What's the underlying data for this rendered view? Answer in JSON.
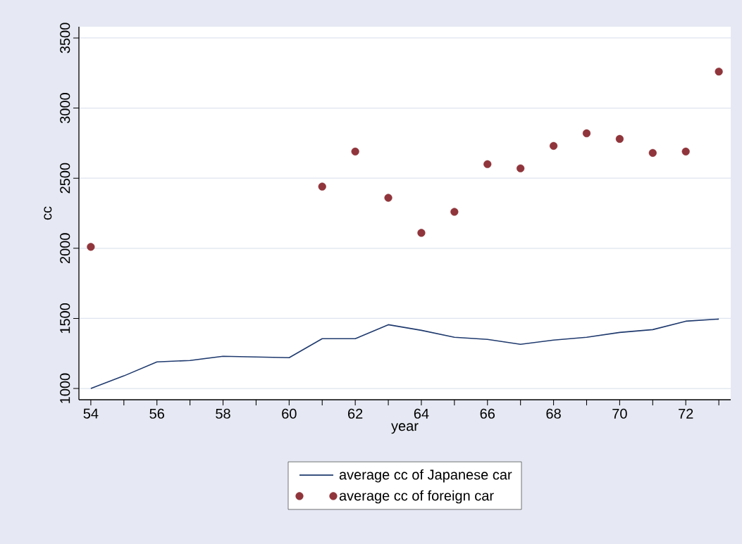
{
  "chart_data": {
    "type": "line",
    "xlabel": "year",
    "ylabel": "cc",
    "x": [
      54,
      55,
      56,
      57,
      58,
      59,
      60,
      61,
      62,
      63,
      64,
      65,
      66,
      67,
      68,
      69,
      70,
      71,
      72,
      73
    ],
    "series": [
      {
        "name": "average cc of Japanese car",
        "type": "line",
        "marker": "none",
        "color": "#1f3a6e",
        "values": [
          1000,
          1090,
          1190,
          1200,
          1230,
          1225,
          1220,
          1355,
          1355,
          1455,
          1415,
          1365,
          1350,
          1315,
          1345,
          1365,
          1400,
          1420,
          1480,
          1495
        ]
      },
      {
        "name": "average cc of foreign car",
        "type": "scatter",
        "marker": "circle",
        "color": "#90353b",
        "values": [
          2010,
          null,
          null,
          null,
          null,
          null,
          null,
          2440,
          2690,
          2360,
          2110,
          2260,
          2600,
          2570,
          2730,
          2820,
          2780,
          2680,
          2690,
          3260
        ]
      }
    ],
    "xlim": [
      53.64,
      73.36
    ],
    "ylim": [
      920,
      3580
    ],
    "xticks": [
      54,
      {
        "value": 55,
        "label": null
      },
      56,
      {
        "value": 57,
        "label": null
      },
      58,
      {
        "value": 59,
        "label": null
      },
      60,
      {
        "value": 61,
        "label": null
      },
      62,
      {
        "value": 63,
        "label": null
      },
      64,
      {
        "value": 65,
        "label": null
      },
      66,
      {
        "value": 67,
        "label": null
      },
      68,
      {
        "value": 69,
        "label": null
      },
      70,
      {
        "value": 71,
        "label": null
      },
      72,
      {
        "value": 73,
        "label": null
      }
    ],
    "yticks": [
      1000,
      1500,
      2000,
      2500,
      3000,
      3500
    ],
    "grid": "y",
    "legend": "bottom"
  }
}
